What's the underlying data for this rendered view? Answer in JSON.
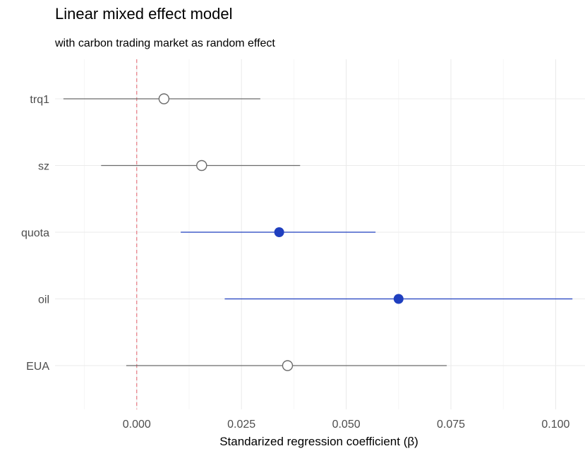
{
  "chart_data": {
    "type": "forest",
    "title": "Linear mixed effect model",
    "subtitle": "with carbon trading market as random effect",
    "xlabel": "Standarized regression coefficient (β)",
    "ylabel": "",
    "xlim": [
      -0.0195,
      0.107
    ],
    "x_ticks": [
      0.0,
      0.025,
      0.05,
      0.075,
      0.1
    ],
    "x_tick_labels": [
      "0.000",
      "0.025",
      "0.050",
      "0.075",
      "0.100"
    ],
    "reference_line": {
      "x": 0,
      "style": "dashed",
      "color": "#e6707a"
    },
    "grid": true,
    "categories": [
      "trq1",
      "sz",
      "quota",
      "oil",
      "EUA"
    ],
    "estimates": [
      {
        "term": "trq1",
        "estimate": 0.0065,
        "conf_low": -0.0175,
        "conf_high": 0.0295,
        "significant": false
      },
      {
        "term": "sz",
        "estimate": 0.0155,
        "conf_low": -0.0085,
        "conf_high": 0.039,
        "significant": false
      },
      {
        "term": "quota",
        "estimate": 0.034,
        "conf_low": 0.0105,
        "conf_high": 0.057,
        "significant": true
      },
      {
        "term": "oil",
        "estimate": 0.0625,
        "conf_low": 0.021,
        "conf_high": 0.104,
        "significant": true
      },
      {
        "term": "EUA",
        "estimate": 0.036,
        "conf_low": -0.0025,
        "conf_high": 0.074,
        "significant": false
      }
    ],
    "colors": {
      "significant": "#1f3fbf",
      "not_significant": "#6b6b6b",
      "reference": "#e6707a",
      "grid_major": "#ebebeb",
      "grid_minor": "#f4f4f4"
    }
  }
}
